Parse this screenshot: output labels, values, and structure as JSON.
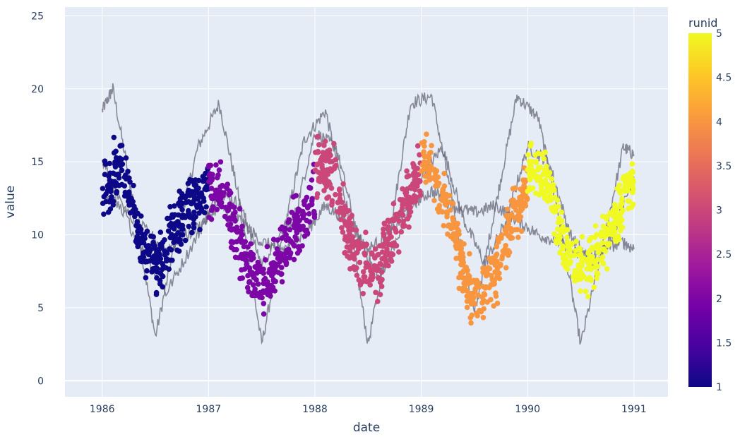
{
  "chart_data": {
    "type": "scatter",
    "title": "",
    "xlabel": "date",
    "ylabel": "value",
    "xlim": [
      1985.65,
      1991.32
    ],
    "ylim": [
      -1.1,
      25.6
    ],
    "x_ticks": [
      1986,
      1987,
      1988,
      1989,
      1990,
      1991
    ],
    "x_tick_labels": [
      "1986",
      "1987",
      "1988",
      "1989",
      "1990",
      "1991"
    ],
    "y_ticks": [
      0,
      5,
      10,
      15,
      20,
      25
    ],
    "y_tick_labels": [
      "0",
      "5",
      "10",
      "15",
      "20",
      "25"
    ],
    "grid": true,
    "legend": "colorbar-right",
    "colorbar": {
      "title": "runid",
      "range": [
        1,
        5
      ],
      "ticks": [
        1,
        1.5,
        2,
        2.5,
        3,
        3.5,
        4,
        4.5,
        5
      ],
      "tick_labels": [
        "1",
        "1.5",
        "2",
        "2.5",
        "3",
        "3.5",
        "4",
        "4.5",
        "5"
      ],
      "colorscale": [
        "#0d0887",
        "#46039f",
        "#7201a8",
        "#9c179e",
        "#bd3786",
        "#d8576b",
        "#ed7953",
        "#fb9f3a",
        "#fdca26",
        "#f0f921"
      ]
    },
    "x_period_years": 5,
    "scatter_series": [
      {
        "runid": 1,
        "x_range": [
          1986.0,
          1987.0
        ],
        "center_y": [
          12.5,
          13.5,
          15,
          12,
          9.5,
          8.5,
          8,
          9.5,
          11,
          12,
          12.5,
          13
        ]
      },
      {
        "runid": 2,
        "x_range": [
          1987.0,
          1988.0
        ],
        "center_y": [
          13,
          13,
          12,
          10,
          8,
          7,
          6.5,
          8,
          9,
          10.5,
          11.5,
          13
        ]
      },
      {
        "runid": 3,
        "x_range": [
          1988.0,
          1989.0
        ],
        "center_y": [
          15,
          14.5,
          14,
          11,
          9,
          8,
          7.5,
          8.5,
          10,
          12,
          13,
          15
        ]
      },
      {
        "runid": 4,
        "x_range": [
          1989.0,
          1990.0
        ],
        "center_y": [
          15,
          14.5,
          13,
          11,
          9,
          6,
          5.5,
          7,
          8,
          10,
          12,
          13
        ]
      },
      {
        "runid": 5,
        "x_range": [
          1990.0,
          1991.0
        ],
        "center_y": [
          14,
          14.5,
          14,
          11,
          9,
          8.5,
          7.5,
          8.5,
          9.5,
          11,
          12.5,
          14
        ]
      }
    ],
    "line_traces": [
      {
        "name": "",
        "x": [
          1986.0,
          1986.1,
          1986.3,
          1986.5,
          1986.7,
          1986.9,
          1987.1,
          1987.3,
          1987.5,
          1987.7,
          1987.9,
          1988.1,
          1988.3,
          1988.5,
          1988.7,
          1988.9,
          1989.1,
          1989.3,
          1989.5,
          1989.7,
          1989.9,
          1990.1,
          1990.3,
          1990.5,
          1990.7,
          1990.9,
          1991.0
        ],
        "y": [
          18.5,
          20,
          12,
          3,
          10,
          16,
          19,
          12,
          2.5,
          10,
          16.5,
          18.5,
          12,
          2.5,
          10,
          19,
          19.5,
          12,
          4.5,
          12,
          19.5,
          18,
          11,
          2.5,
          9,
          16,
          15.5
        ],
        "color": "#666677"
      },
      {
        "name": "",
        "x": [
          1986.0,
          1986.3,
          1986.6,
          1986.9,
          1987.1,
          1987.3,
          1987.5,
          1987.8,
          1988.0,
          1988.2,
          1988.4,
          1988.6,
          1988.8,
          1989.0,
          1989.2,
          1989.4,
          1989.6,
          1989.8,
          1990.0,
          1990.2,
          1990.4,
          1990.6,
          1990.8,
          1991.0
        ],
        "y": [
          15,
          10,
          6,
          10,
          13,
          12,
          8,
          11,
          17,
          16,
          10,
          7,
          10,
          14,
          16,
          11,
          8,
          11,
          16,
          15,
          10,
          8,
          10,
          14
        ],
        "color": "#666677"
      },
      {
        "name": "",
        "x": [
          1986.0,
          1986.3,
          1986.6,
          1986.9,
          1987.1,
          1987.3,
          1987.5,
          1987.7,
          1987.9,
          1988.1,
          1988.3,
          1988.5,
          1988.7,
          1988.9,
          1989.1,
          1989.3,
          1989.5,
          1989.7,
          1989.9,
          1990.1,
          1990.3,
          1990.5,
          1990.7,
          1990.9,
          1991.0
        ],
        "y": [
          13,
          11,
          9,
          10.5,
          12,
          11,
          9.5,
          9,
          10,
          12,
          11,
          9,
          10,
          12,
          13,
          12,
          11.5,
          12,
          11,
          10,
          9.5,
          8.5,
          9,
          9.5,
          9
        ],
        "color": "#666677"
      }
    ]
  }
}
